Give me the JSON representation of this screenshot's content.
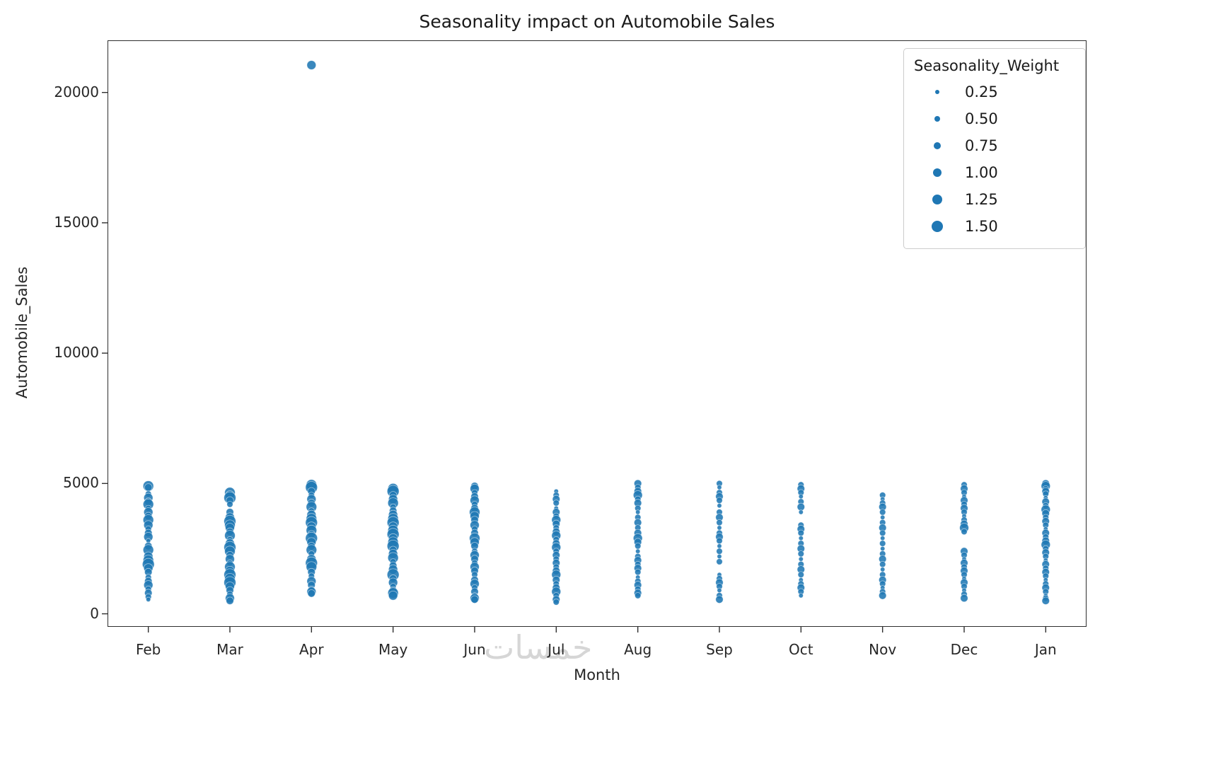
{
  "title": "Seasonality impact on Automobile Sales",
  "axes": {
    "xlabel": "Month",
    "ylabel": "Automobile_Sales"
  },
  "watermark": "خمسات",
  "colors": {
    "point": "#1f77b4",
    "spine": "#2e2e2e",
    "text": "#262626",
    "legend_border": "#cccccc",
    "watermark": "#d6d6d6"
  },
  "legend": {
    "title": "Seasonality_Weight",
    "entries": [
      {
        "label": "0.25",
        "weight": 0.25
      },
      {
        "label": "0.50",
        "weight": 0.5
      },
      {
        "label": "0.75",
        "weight": 0.75
      },
      {
        "label": "1.00",
        "weight": 1.0
      },
      {
        "label": "1.25",
        "weight": 1.25
      },
      {
        "label": "1.50",
        "weight": 1.5
      }
    ]
  },
  "chart_data": {
    "type": "scatter",
    "title": "Seasonality impact on Automobile Sales",
    "xlabel": "Month",
    "ylabel": "Automobile_Sales",
    "legend_title": "Seasonality_Weight",
    "legend_sizes": [
      0.25,
      0.5,
      0.75,
      1.0,
      1.25,
      1.5
    ],
    "categories": [
      "Feb",
      "Mar",
      "Apr",
      "May",
      "Jun",
      "Jul",
      "Aug",
      "Sep",
      "Oct",
      "Nov",
      "Dec",
      "Jan"
    ],
    "yticks": [
      0,
      5000,
      10000,
      15000,
      20000
    ],
    "ytick_labels": [
      "0",
      "5000",
      "10000",
      "15000",
      "20000"
    ],
    "ylim": [
      -500,
      22000
    ],
    "grid": false,
    "legend_position": "upper right",
    "points": {
      "Feb": [
        [
          4900,
          1.25
        ],
        [
          4850,
          0.75
        ],
        [
          4600,
          0.5
        ],
        [
          4450,
          1.0
        ],
        [
          4300,
          0.75
        ],
        [
          4200,
          1.25
        ],
        [
          4050,
          0.5
        ],
        [
          3900,
          1.0
        ],
        [
          3750,
          0.75
        ],
        [
          3600,
          1.25
        ],
        [
          3400,
          1.0
        ],
        [
          3250,
          0.5
        ],
        [
          3100,
          0.75
        ],
        [
          2950,
          1.0
        ],
        [
          2800,
          0.25
        ],
        [
          2600,
          0.75
        ],
        [
          2450,
          1.25
        ],
        [
          2200,
          1.0
        ],
        [
          2050,
          1.25
        ],
        [
          1900,
          1.5
        ],
        [
          1750,
          1.0
        ],
        [
          1600,
          0.75
        ],
        [
          1400,
          0.5
        ],
        [
          1250,
          0.75
        ],
        [
          1100,
          1.0
        ],
        [
          950,
          0.5
        ],
        [
          800,
          0.75
        ],
        [
          650,
          0.5
        ],
        [
          550,
          0.25
        ]
      ],
      "Mar": [
        [
          4650,
          1.25
        ],
        [
          4550,
          1.0
        ],
        [
          4450,
          1.5
        ],
        [
          4350,
          0.75
        ],
        [
          4200,
          0.5
        ],
        [
          3900,
          0.75
        ],
        [
          3700,
          1.0
        ],
        [
          3550,
          1.5
        ],
        [
          3400,
          1.25
        ],
        [
          3300,
          1.0
        ],
        [
          3150,
          0.75
        ],
        [
          3000,
          1.25
        ],
        [
          2850,
          0.5
        ],
        [
          2700,
          1.0
        ],
        [
          2550,
          1.5
        ],
        [
          2400,
          1.25
        ],
        [
          2250,
          0.75
        ],
        [
          2100,
          1.0
        ],
        [
          1950,
          0.5
        ],
        [
          1800,
          1.25
        ],
        [
          1650,
          1.0
        ],
        [
          1500,
          1.5
        ],
        [
          1350,
          1.25
        ],
        [
          1200,
          1.5
        ],
        [
          1050,
          1.0
        ],
        [
          900,
          0.75
        ],
        [
          750,
          0.5
        ],
        [
          600,
          1.0
        ],
        [
          500,
          0.75
        ]
      ],
      "Apr": [
        [
          21050,
          1.0
        ],
        [
          4950,
          1.25
        ],
        [
          4850,
          1.5
        ],
        [
          4700,
          0.75
        ],
        [
          4550,
          0.5
        ],
        [
          4400,
          1.0
        ],
        [
          4250,
          0.75
        ],
        [
          4100,
          1.25
        ],
        [
          3950,
          0.5
        ],
        [
          3800,
          1.0
        ],
        [
          3650,
          1.25
        ],
        [
          3500,
          1.5
        ],
        [
          3350,
          1.0
        ],
        [
          3200,
          1.25
        ],
        [
          3050,
          0.75
        ],
        [
          2900,
          1.5
        ],
        [
          2750,
          1.0
        ],
        [
          2600,
          0.75
        ],
        [
          2450,
          1.25
        ],
        [
          2300,
          0.5
        ],
        [
          2100,
          1.0
        ],
        [
          1950,
          1.5
        ],
        [
          1800,
          1.25
        ],
        [
          1600,
          0.75
        ],
        [
          1450,
          0.5
        ],
        [
          1250,
          1.0
        ],
        [
          1100,
          0.75
        ],
        [
          950,
          0.5
        ],
        [
          850,
          1.0
        ],
        [
          780,
          0.75
        ]
      ],
      "May": [
        [
          4800,
          1.25
        ],
        [
          4700,
          1.5
        ],
        [
          4550,
          0.75
        ],
        [
          4400,
          1.0
        ],
        [
          4250,
          1.25
        ],
        [
          4100,
          0.5
        ],
        [
          3950,
          0.75
        ],
        [
          3800,
          1.0
        ],
        [
          3650,
          1.25
        ],
        [
          3500,
          1.5
        ],
        [
          3350,
          1.0
        ],
        [
          3200,
          1.25
        ],
        [
          3050,
          1.5
        ],
        [
          2900,
          1.0
        ],
        [
          2750,
          1.25
        ],
        [
          2600,
          1.5
        ],
        [
          2450,
          0.75
        ],
        [
          2300,
          1.0
        ],
        [
          2150,
          1.25
        ],
        [
          2000,
          0.5
        ],
        [
          1850,
          0.75
        ],
        [
          1700,
          1.0
        ],
        [
          1500,
          1.5
        ],
        [
          1350,
          0.75
        ],
        [
          1200,
          1.0
        ],
        [
          1050,
          0.5
        ],
        [
          900,
          0.75
        ],
        [
          800,
          1.25
        ],
        [
          700,
          1.0
        ]
      ],
      "Jun": [
        [
          4900,
          0.75
        ],
        [
          4800,
          1.0
        ],
        [
          4650,
          0.5
        ],
        [
          4500,
          0.75
        ],
        [
          4350,
          1.0
        ],
        [
          4200,
          0.5
        ],
        [
          4050,
          0.75
        ],
        [
          3900,
          1.25
        ],
        [
          3750,
          1.0
        ],
        [
          3600,
          0.75
        ],
        [
          3400,
          1.0
        ],
        [
          3250,
          0.5
        ],
        [
          3100,
          0.75
        ],
        [
          2900,
          1.25
        ],
        [
          2750,
          1.0
        ],
        [
          2600,
          0.75
        ],
        [
          2400,
          0.5
        ],
        [
          2250,
          1.0
        ],
        [
          2100,
          0.75
        ],
        [
          1950,
          0.5
        ],
        [
          1800,
          1.0
        ],
        [
          1650,
          0.75
        ],
        [
          1500,
          0.5
        ],
        [
          1300,
          0.75
        ],
        [
          1150,
          1.0
        ],
        [
          1000,
          0.5
        ],
        [
          850,
          0.75
        ],
        [
          700,
          0.5
        ],
        [
          600,
          1.0
        ],
        [
          550,
          0.75
        ]
      ],
      "Jul": [
        [
          4700,
          0.25
        ],
        [
          4550,
          0.5
        ],
        [
          4400,
          0.75
        ],
        [
          4250,
          0.5
        ],
        [
          4050,
          0.25
        ],
        [
          3900,
          0.75
        ],
        [
          3750,
          0.5
        ],
        [
          3600,
          1.0
        ],
        [
          3450,
          0.75
        ],
        [
          3300,
          0.5
        ],
        [
          3150,
          0.75
        ],
        [
          3000,
          1.0
        ],
        [
          2850,
          0.5
        ],
        [
          2700,
          0.75
        ],
        [
          2550,
          1.0
        ],
        [
          2400,
          0.5
        ],
        [
          2250,
          0.75
        ],
        [
          2100,
          0.5
        ],
        [
          1950,
          0.75
        ],
        [
          1800,
          0.5
        ],
        [
          1650,
          0.75
        ],
        [
          1500,
          1.0
        ],
        [
          1300,
          0.75
        ],
        [
          1150,
          0.5
        ],
        [
          1000,
          0.75
        ],
        [
          850,
          1.0
        ],
        [
          700,
          0.5
        ],
        [
          550,
          0.75
        ],
        [
          450,
          0.5
        ]
      ],
      "Aug": [
        [
          5000,
          0.75
        ],
        [
          4850,
          0.5
        ],
        [
          4700,
          0.75
        ],
        [
          4550,
          1.0
        ],
        [
          4400,
          0.5
        ],
        [
          4250,
          0.75
        ],
        [
          4050,
          0.5
        ],
        [
          3900,
          0.25
        ],
        [
          3700,
          0.5
        ],
        [
          3500,
          0.75
        ],
        [
          3300,
          0.5
        ],
        [
          3100,
          0.75
        ],
        [
          2900,
          1.0
        ],
        [
          2750,
          0.75
        ],
        [
          2600,
          0.5
        ],
        [
          2400,
          0.25
        ],
        [
          2200,
          0.5
        ],
        [
          2050,
          0.75
        ],
        [
          1900,
          0.5
        ],
        [
          1750,
          0.75
        ],
        [
          1600,
          0.5
        ],
        [
          1400,
          0.25
        ],
        [
          1250,
          0.5
        ],
        [
          1100,
          0.75
        ],
        [
          950,
          0.5
        ],
        [
          800,
          0.75
        ],
        [
          700,
          0.5
        ]
      ],
      "Sep": [
        [
          5000,
          0.5
        ],
        [
          4850,
          0.25
        ],
        [
          4650,
          0.5
        ],
        [
          4500,
          0.75
        ],
        [
          4350,
          0.5
        ],
        [
          4150,
          0.25
        ],
        [
          3900,
          0.5
        ],
        [
          3700,
          0.75
        ],
        [
          3500,
          0.5
        ],
        [
          3300,
          0.25
        ],
        [
          3100,
          0.5
        ],
        [
          2950,
          0.75
        ],
        [
          2800,
          0.5
        ],
        [
          2600,
          0.25
        ],
        [
          2400,
          0.5
        ],
        [
          2200,
          0.25
        ],
        [
          2000,
          0.5
        ],
        [
          1500,
          0.25
        ],
        [
          1350,
          0.5
        ],
        [
          1200,
          0.75
        ],
        [
          1050,
          0.5
        ],
        [
          900,
          0.25
        ],
        [
          700,
          0.5
        ],
        [
          550,
          0.75
        ]
      ],
      "Oct": [
        [
          4950,
          0.5
        ],
        [
          4800,
          0.75
        ],
        [
          4650,
          0.5
        ],
        [
          4500,
          0.25
        ],
        [
          4300,
          0.5
        ],
        [
          4100,
          0.75
        ],
        [
          3900,
          0.25
        ],
        [
          3400,
          0.5
        ],
        [
          3250,
          0.75
        ],
        [
          3100,
          0.5
        ],
        [
          2900,
          0.25
        ],
        [
          2700,
          0.5
        ],
        [
          2500,
          0.75
        ],
        [
          2300,
          0.5
        ],
        [
          2100,
          0.25
        ],
        [
          1900,
          0.5
        ],
        [
          1700,
          0.75
        ],
        [
          1500,
          0.5
        ],
        [
          1300,
          0.25
        ],
        [
          1150,
          0.5
        ],
        [
          1000,
          0.75
        ],
        [
          850,
          0.5
        ],
        [
          700,
          0.25
        ]
      ],
      "Nov": [
        [
          4550,
          0.5
        ],
        [
          4400,
          0.25
        ],
        [
          4250,
          0.5
        ],
        [
          4100,
          0.75
        ],
        [
          3900,
          0.5
        ],
        [
          3700,
          0.25
        ],
        [
          3500,
          0.5
        ],
        [
          3300,
          0.75
        ],
        [
          3100,
          0.5
        ],
        [
          2900,
          0.25
        ],
        [
          2700,
          0.5
        ],
        [
          2500,
          0.25
        ],
        [
          2300,
          0.5
        ],
        [
          2100,
          0.75
        ],
        [
          1900,
          0.5
        ],
        [
          1700,
          0.25
        ],
        [
          1500,
          0.5
        ],
        [
          1300,
          0.75
        ],
        [
          1150,
          0.5
        ],
        [
          1000,
          0.25
        ],
        [
          850,
          0.5
        ],
        [
          700,
          0.75
        ]
      ],
      "Dec": [
        [
          4950,
          0.5
        ],
        [
          4800,
          0.75
        ],
        [
          4650,
          0.5
        ],
        [
          4500,
          0.25
        ],
        [
          4350,
          0.75
        ],
        [
          4200,
          0.5
        ],
        [
          4050,
          0.75
        ],
        [
          3900,
          0.5
        ],
        [
          3750,
          0.25
        ],
        [
          3600,
          0.5
        ],
        [
          3450,
          0.75
        ],
        [
          3300,
          1.0
        ],
        [
          3150,
          0.5
        ],
        [
          2400,
          0.75
        ],
        [
          2250,
          0.5
        ],
        [
          2100,
          0.25
        ],
        [
          1950,
          0.75
        ],
        [
          1800,
          0.5
        ],
        [
          1650,
          0.75
        ],
        [
          1500,
          0.5
        ],
        [
          1350,
          0.25
        ],
        [
          1200,
          0.75
        ],
        [
          1050,
          0.5
        ],
        [
          900,
          0.25
        ],
        [
          750,
          0.5
        ],
        [
          600,
          0.75
        ]
      ],
      "Jan": [
        [
          5000,
          0.75
        ],
        [
          4900,
          1.0
        ],
        [
          4800,
          0.5
        ],
        [
          4700,
          0.75
        ],
        [
          4600,
          0.5
        ],
        [
          4450,
          0.25
        ],
        [
          4300,
          0.75
        ],
        [
          4150,
          0.5
        ],
        [
          4000,
          1.0
        ],
        [
          3850,
          0.75
        ],
        [
          3700,
          0.5
        ],
        [
          3550,
          0.75
        ],
        [
          3400,
          0.5
        ],
        [
          3250,
          0.25
        ],
        [
          3100,
          0.75
        ],
        [
          2950,
          0.5
        ],
        [
          2800,
          0.75
        ],
        [
          2650,
          1.0
        ],
        [
          2500,
          0.5
        ],
        [
          2350,
          0.75
        ],
        [
          2200,
          0.5
        ],
        [
          2050,
          0.25
        ],
        [
          1900,
          0.75
        ],
        [
          1750,
          0.5
        ],
        [
          1600,
          0.75
        ],
        [
          1450,
          0.5
        ],
        [
          1300,
          0.25
        ],
        [
          1150,
          0.5
        ],
        [
          1000,
          0.75
        ],
        [
          850,
          0.5
        ],
        [
          700,
          0.25
        ],
        [
          600,
          0.5
        ],
        [
          500,
          0.75
        ]
      ]
    }
  }
}
